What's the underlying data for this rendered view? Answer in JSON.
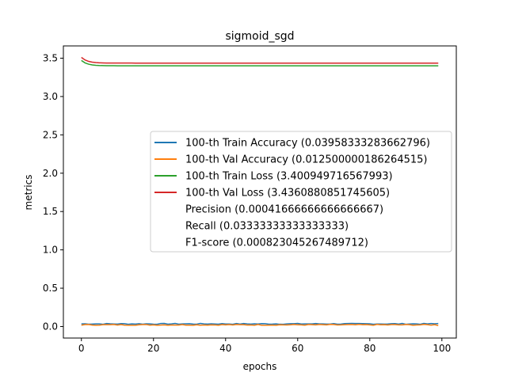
{
  "chart_data": {
    "type": "line",
    "title": "sigmoid_sgd",
    "xlabel": "epochs",
    "ylabel": "metrics",
    "xlim": [
      -5,
      104
    ],
    "ylim": [
      -0.15,
      3.66
    ],
    "xticks": [
      0,
      20,
      40,
      60,
      80,
      100
    ],
    "yticks": [
      0.0,
      0.5,
      1.0,
      1.5,
      2.0,
      2.5,
      3.0,
      3.5
    ],
    "x_range": [
      0,
      99
    ],
    "grid": false,
    "legend_position": "center-right",
    "series": [
      {
        "name": "100-th Train Accuracy (0.03958333283662796)",
        "color": "#1f77b4",
        "pattern": "noisy",
        "base": 0.035,
        "amplitude": 0.006,
        "last": 0.03958333283662796
      },
      {
        "name": "100-th Val Accuracy (0.012500000186264515)",
        "color": "#ff7f0e",
        "pattern": "noisy",
        "base": 0.022,
        "amplitude": 0.006,
        "last": 0.012500000186264515
      },
      {
        "name": "100-th Train Loss (3.400949716567993)",
        "color": "#2ca02c",
        "pattern": "decay",
        "start": 3.47,
        "end": 3.400949716567993,
        "rate": 0.6
      },
      {
        "name": "100-th Val Loss (3.4360880851745605)",
        "color": "#d62728",
        "pattern": "decay",
        "start": 3.51,
        "end": 3.4360880851745605,
        "rate": 0.6
      }
    ],
    "legend_extra": [
      "Precision (0.00041666666666666667)",
      "Recall (0.03333333333333333)",
      "F1-score (0.000823045267489712)"
    ]
  }
}
